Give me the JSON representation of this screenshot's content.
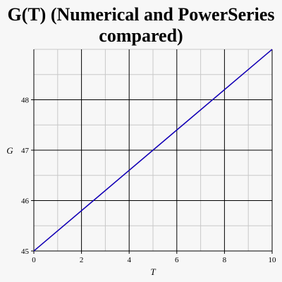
{
  "chart_data": {
    "type": "line",
    "title_lines": [
      "G(T) (Numerical and PowerSeries",
      "compared)"
    ],
    "xlabel": "T",
    "ylabel": "G",
    "xlim": [
      0,
      10
    ],
    "ylim": [
      45,
      49
    ],
    "x_ticks": [
      0,
      2,
      4,
      6,
      8,
      10
    ],
    "y_ticks": [
      45,
      46,
      47,
      48
    ],
    "x_minor_step": 1,
    "y_minor_step": 0.5,
    "grid": true,
    "series": [
      {
        "color": "#c00000",
        "x": [
          0,
          10
        ],
        "y": [
          45.0,
          49.0
        ]
      },
      {
        "color": "#0000c8",
        "x": [
          0,
          10
        ],
        "y": [
          45.0,
          49.0
        ]
      }
    ],
    "colors": {
      "background": "#f7f7f7",
      "major_grid": "#000000",
      "minor_grid": "#c8c8c8"
    }
  }
}
